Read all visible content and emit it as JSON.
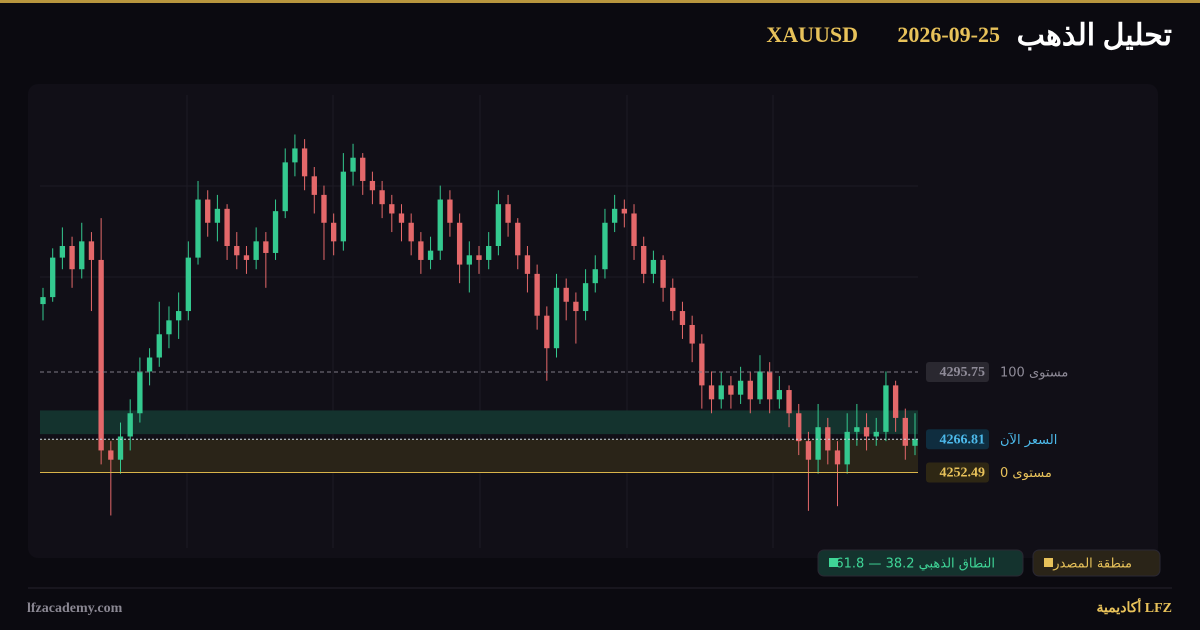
{
  "header": {
    "title": "تحليل الذهب",
    "date": "2026-09-25",
    "symbol": "XAUUSD"
  },
  "chart_data": {
    "type": "candlestick",
    "ylim": [
      4220,
      4415
    ],
    "up_color": "#34c98f",
    "down_color": "#e4686a",
    "series": [
      {
        "open": [
          4325,
          4328,
          4345,
          4350,
          4340,
          4352,
          4344,
          4262,
          4258,
          4268,
          4278,
          4296,
          4302,
          4312,
          4318,
          4322,
          4345,
          4370,
          4360,
          4366,
          4350,
          4346,
          4344,
          4352,
          4347,
          4365,
          4386,
          4392,
          4380,
          4372,
          4360,
          4352,
          4382,
          4388,
          4378,
          4374,
          4368,
          4364,
          4360,
          4352,
          4344,
          4348,
          4370,
          4360,
          4342,
          4346,
          4344,
          4350,
          4368,
          4360,
          4346,
          4338,
          4320,
          4306,
          4332,
          4326,
          4322,
          4334,
          4340,
          4360,
          4366,
          4364,
          4350,
          4338,
          4344,
          4332,
          4322,
          4316,
          4308,
          4290,
          4284,
          4290,
          4286,
          4292,
          4284,
          4296,
          4284,
          4288,
          4278,
          4266,
          4258,
          4272,
          4262,
          4256,
          4270,
          4272,
          4268,
          4270,
          4290,
          4276,
          4264
        ],
        "high": [
          4332,
          4349,
          4358,
          4354,
          4360,
          4356,
          4362,
          4266,
          4274,
          4284,
          4302,
          4306,
          4326,
          4324,
          4330,
          4352,
          4378,
          4374,
          4372,
          4368,
          4356,
          4350,
          4358,
          4356,
          4370,
          4392,
          4398,
          4396,
          4384,
          4376,
          4364,
          4390,
          4394,
          4390,
          4382,
          4378,
          4372,
          4368,
          4364,
          4356,
          4354,
          4376,
          4374,
          4364,
          4352,
          4350,
          4356,
          4374,
          4372,
          4362,
          4350,
          4342,
          4324,
          4338,
          4336,
          4330,
          4340,
          4346,
          4366,
          4372,
          4370,
          4368,
          4354,
          4348,
          4346,
          4336,
          4326,
          4320,
          4312,
          4296,
          4296,
          4294,
          4298,
          4296,
          4303,
          4300,
          4294,
          4290,
          4282,
          4270,
          4282,
          4276,
          4266,
          4278,
          4282,
          4278,
          4276,
          4296,
          4292,
          4280,
          4278
        ],
        "low": [
          4318,
          4326,
          4340,
          4332,
          4336,
          4322,
          4256,
          4234,
          4252,
          4262,
          4274,
          4290,
          4298,
          4306,
          4310,
          4318,
          4342,
          4354,
          4352,
          4344,
          4340,
          4338,
          4340,
          4332,
          4344,
          4362,
          4380,
          4374,
          4364,
          4344,
          4346,
          4348,
          4376,
          4372,
          4368,
          4362,
          4356,
          4352,
          4346,
          4338,
          4340,
          4344,
          4354,
          4334,
          4330,
          4338,
          4340,
          4346,
          4354,
          4340,
          4330,
          4314,
          4292,
          4302,
          4318,
          4308,
          4318,
          4330,
          4336,
          4356,
          4358,
          4344,
          4334,
          4334,
          4326,
          4318,
          4310,
          4300,
          4280,
          4278,
          4280,
          4280,
          4282,
          4278,
          4282,
          4278,
          4280,
          4272,
          4260,
          4236,
          4252,
          4256,
          4238,
          4252,
          4264,
          4262,
          4264,
          4266,
          4270,
          4258,
          4260
        ],
        "close": [
          4328,
          4345,
          4350,
          4340,
          4352,
          4344,
          4262,
          4258,
          4268,
          4278,
          4296,
          4302,
          4312,
          4318,
          4322,
          4345,
          4370,
          4360,
          4366,
          4350,
          4346,
          4344,
          4352,
          4347,
          4365,
          4386,
          4392,
          4380,
          4372,
          4360,
          4352,
          4382,
          4388,
          4378,
          4374,
          4368,
          4364,
          4360,
          4352,
          4344,
          4348,
          4370,
          4360,
          4342,
          4346,
          4344,
          4350,
          4368,
          4360,
          4346,
          4338,
          4320,
          4306,
          4332,
          4326,
          4322,
          4334,
          4340,
          4360,
          4366,
          4364,
          4350,
          4338,
          4344,
          4332,
          4322,
          4316,
          4308,
          4290,
          4284,
          4290,
          4286,
          4292,
          4284,
          4296,
          4284,
          4288,
          4278,
          4266,
          4258,
          4272,
          4262,
          4256,
          4270,
          4272,
          4268,
          4270,
          4290,
          4276,
          4264,
          4266.81
        ]
      }
    ],
    "zones": [
      {
        "name": "النطاق الذهبي 38.2 — 61.8",
        "from": 4269.02,
        "to": 4279.22,
        "color": "#14332e",
        "text_color": "#3fd597"
      },
      {
        "name": "منطقة المصدر",
        "from": 4252.49,
        "to": 4266.81,
        "color": "#2a2418",
        "text_color": "#e8c25a"
      }
    ],
    "levels": [
      {
        "label": "مستوى 100",
        "value": 4295.75,
        "color": "#7d7986",
        "style": "dashed",
        "tag_color": "#2a2830",
        "text_color": "#8f8b98"
      },
      {
        "label": "السعر الآن",
        "value": 4266.81,
        "color": "#c9d6e0",
        "style": "dotted",
        "tag_color": "#0f2d3f",
        "text_color": "#4cb9ea"
      },
      {
        "label": "مستوى 0",
        "value": 4252.49,
        "color": "#d9b44a",
        "style": "solid",
        "tag_color": "#2e2714",
        "text_color": "#e8c25a"
      }
    ]
  },
  "footer": {
    "site": "lfzacademy.com",
    "brand": "أكاديمية LFZ"
  }
}
